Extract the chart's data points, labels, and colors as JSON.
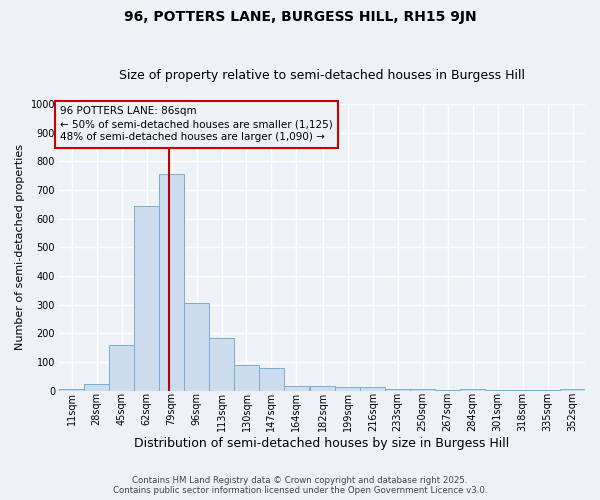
{
  "title": "96, POTTERS LANE, BURGESS HILL, RH15 9JN",
  "subtitle": "Size of property relative to semi-detached houses in Burgess Hill",
  "xlabel": "Distribution of semi-detached houses by size in Burgess Hill",
  "ylabel": "Number of semi-detached properties",
  "bin_edges": [
    11,
    28,
    45,
    62,
    79,
    96,
    113,
    130,
    147,
    164,
    182,
    199,
    216,
    233,
    250,
    267,
    284,
    301,
    318,
    335,
    352
  ],
  "bar_heights": [
    5,
    25,
    160,
    645,
    755,
    305,
    185,
    90,
    78,
    15,
    15,
    12,
    12,
    5,
    5,
    2,
    5,
    2,
    2,
    2,
    5
  ],
  "bar_color": "#ccddf0",
  "bar_edge_color": "#7aadcc",
  "property_size": 86,
  "vline_color": "#bb0000",
  "annotation_title": "96 POTTERS LANE: 86sqm",
  "annotation_line1": "← 50% of semi-detached houses are smaller (1,125)",
  "annotation_line2": "48% of semi-detached houses are larger (1,090) →",
  "annotation_box_color": "#cc0000",
  "ylim": [
    0,
    1000
  ],
  "yticks": [
    0,
    100,
    200,
    300,
    400,
    500,
    600,
    700,
    800,
    900,
    1000
  ],
  "background_color": "#eef2f7",
  "grid_color": "#ffffff",
  "footer_line1": "Contains HM Land Registry data © Crown copyright and database right 2025.",
  "footer_line2": "Contains public sector information licensed under the Open Government Licence v3.0.",
  "title_fontsize": 10,
  "subtitle_fontsize": 9,
  "tick_label_fontsize": 7,
  "ylabel_fontsize": 8,
  "xlabel_fontsize": 9
}
